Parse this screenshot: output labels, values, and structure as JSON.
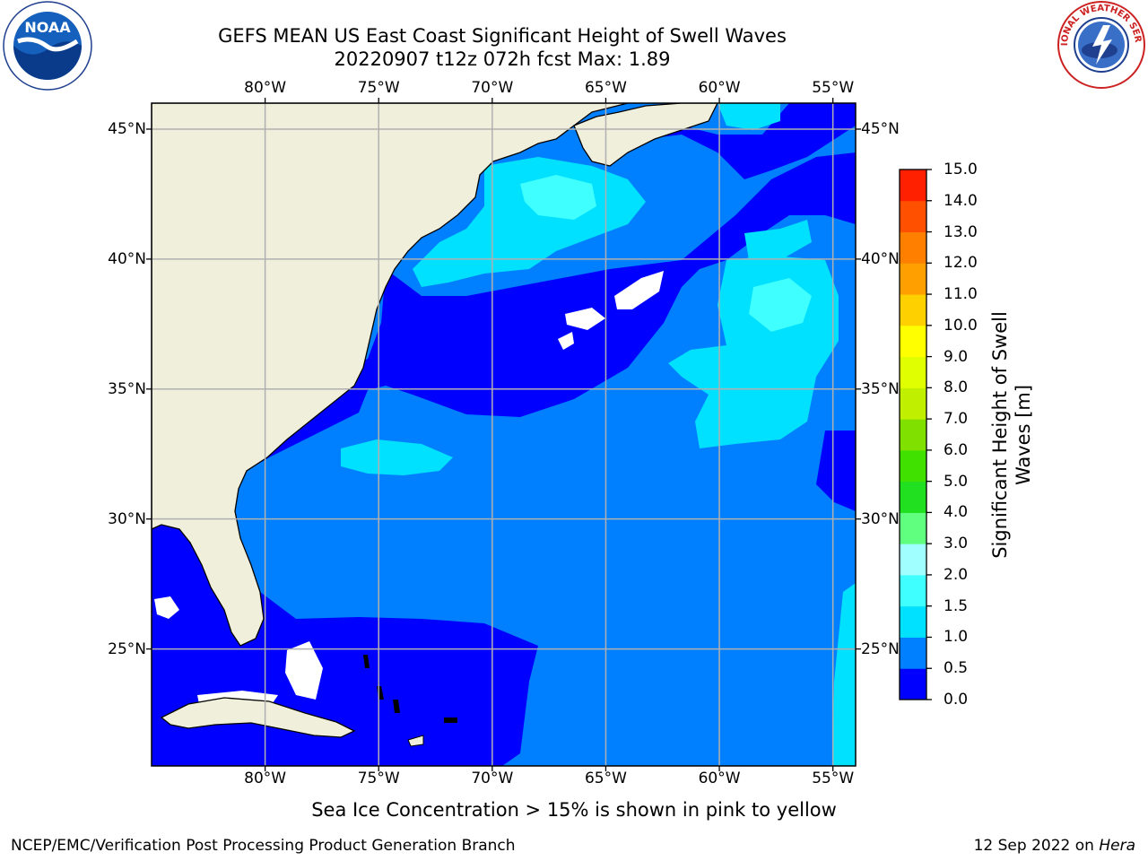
{
  "title": {
    "line1": "GEFS MEAN US East Coast Significant Height of Swell Waves",
    "line2": "20220907 t12z 072h fcst   Max: 1.89"
  },
  "map": {
    "lon_labels": [
      "80°W",
      "75°W",
      "70°W",
      "65°W",
      "60°W",
      "55°W"
    ],
    "lat_labels": [
      "45°N",
      "40°N",
      "35°N",
      "30°N",
      "25°N"
    ],
    "lon_range": [
      -85,
      -54
    ],
    "lat_range": [
      20.5,
      46
    ],
    "grid_lons": [
      -80,
      -75,
      -70,
      -65,
      -60,
      -55
    ],
    "grid_lats": [
      45,
      40,
      35,
      30,
      25
    ],
    "land_color": "#efefdc",
    "grid_color": "#b0b0b0"
  },
  "colorbar": {
    "title_line1": "Significant Height of Swell",
    "title_line2": "Waves [m]",
    "ticks": [
      "0.0",
      "0.5",
      "1.0",
      "1.5",
      "2.0",
      "3.0",
      "4.0",
      "5.0",
      "6.0",
      "7.0",
      "8.0",
      "9.0",
      "10.0",
      "11.0",
      "12.0",
      "13.0",
      "14.0",
      "15.0"
    ],
    "colors": [
      "#0000ff",
      "#0080ff",
      "#00e0ff",
      "#40ffff",
      "#a0ffff",
      "#60ff80",
      "#20e020",
      "#40e000",
      "#80e000",
      "#c0f000",
      "#e0ff00",
      "#ffff00",
      "#ffd000",
      "#ffa000",
      "#ff8000",
      "#ff5000",
      "#ff2000"
    ]
  },
  "subtitle": "Sea Ice Concentration > 15% is shown in pink to yellow",
  "footer": {
    "left": "NCEP/EMC/Verification Post Processing Product Generation Branch",
    "right_date": "12 Sep 2022 on ",
    "right_host": "Hera"
  },
  "logos": {
    "noaa_text": "NOAA",
    "nws_text": "NATIONAL WEATHER SERVICE"
  }
}
